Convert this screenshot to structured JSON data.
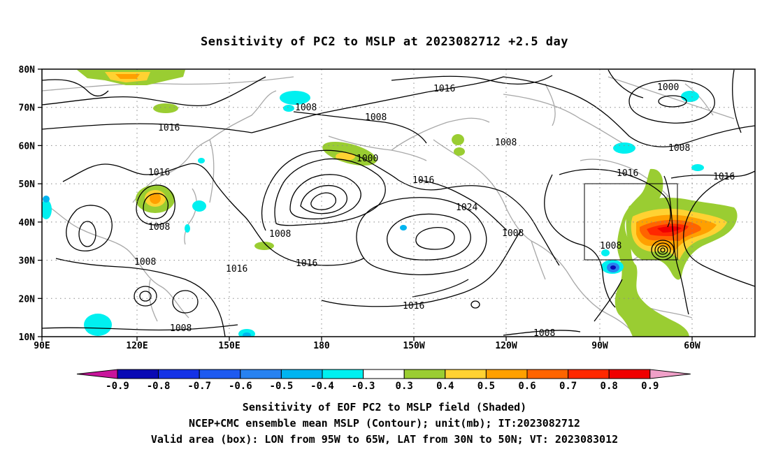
{
  "title": "Sensitivity of PC2 to MSLP at 2023082712 +2.5 day",
  "map": {
    "lat_labels": [
      "80N",
      "70N",
      "60N",
      "50N",
      "40N",
      "30N",
      "20N",
      "10N"
    ],
    "lon_labels": [
      "90E",
      "120E",
      "150E",
      "180",
      "150W",
      "120W",
      "90W",
      "60W"
    ],
    "contour_unit": "mb",
    "contour_labels": [
      "1016",
      "1008",
      "1000",
      "1016",
      "1008",
      "1016",
      "1000",
      "1008",
      "1016",
      "1016",
      "1008",
      "1016",
      "1024",
      "1008",
      "1008",
      "1016",
      "1016",
      "1008",
      "1008",
      "1016",
      "1008"
    ],
    "valid_box": {
      "lon_west": "95W",
      "lon_east": "65W",
      "lat_south": "30N",
      "lat_north": "50N"
    }
  },
  "colorbar": {
    "labels": [
      "-0.9",
      "-0.8",
      "-0.7",
      "-0.6",
      "-0.5",
      "-0.4",
      "-0.3",
      "0.3",
      "0.4",
      "0.5",
      "0.6",
      "0.7",
      "0.8",
      "0.9"
    ],
    "colors": [
      "#0a0ab4",
      "#1432e6",
      "#1e5af0",
      "#2882f0",
      "#00b4f0",
      "#00f0f0",
      "#ffffff",
      "#9acd32",
      "#ffd232",
      "#ffa000",
      "#ff6400",
      "#ff2800",
      "#f00000"
    ],
    "under_color": "#c8149b",
    "over_color": "#f0a0c8"
  },
  "captions": {
    "line1": "Sensitivity of EOF PC2 to MSLP field (Shaded)",
    "line2": "NCEP+CMC ensemble mean MSLP (Contour); unit(mb); IT:2023082712",
    "line3": "Valid area (box): LON from 95W to 65W, LAT from 30N to 50N; VT: 2023083012"
  }
}
